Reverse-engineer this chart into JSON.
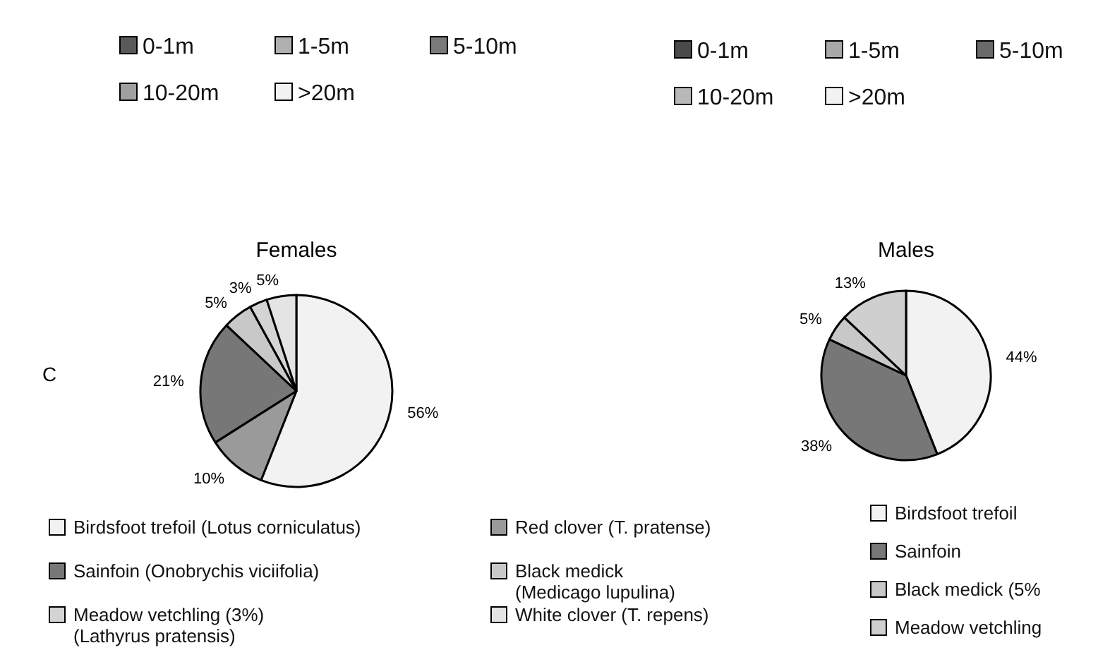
{
  "chart_data": [
    {
      "type": "other",
      "categories": [
        "0-1m",
        "1-5m",
        "5-10m",
        "10-20m",
        ">20m"
      ],
      "colors": [
        "#5a5a5a",
        "#b0b0b0",
        "#7a7a7a",
        "#a0a0a0",
        "#f2f2f2"
      ]
    },
    {
      "type": "other",
      "categories": [
        "0-1m",
        "1-5m",
        "5-10m",
        "10-20m",
        ">20m"
      ],
      "colors": [
        "#4a4a4a",
        "#a8a8a8",
        "#6a6a6a",
        "#b8b8b8",
        "#f2f2f2"
      ]
    },
    {
      "type": "pie",
      "title": "Females",
      "annotations": [
        "C"
      ],
      "categories": [
        "Birdsfoot trefoil (Lotus corniculatus)",
        "Red clover (T. pratense)",
        "Sainfoin (Onobrychis viciifolia)",
        "Black medick\n(Medicago lupulina)",
        "Meadow vetchling (3%)\n(Lathyrus pratensis)",
        "White clover (T. repens)"
      ],
      "values": [
        56,
        10,
        21,
        5,
        3,
        5
      ],
      "colors": [
        "#f2f2f2",
        "#9a9a9a",
        "#777777",
        "#c8c8c8",
        "#d4d4d4",
        "#e4e4e4"
      ],
      "value_labels": [
        "56%",
        "10%",
        "21%",
        "5%",
        "3%",
        "5%"
      ],
      "legend": "bottom"
    },
    {
      "type": "pie",
      "title": "Males",
      "categories": [
        "Birdsfoot trefoil",
        "Sainfoin",
        "Black medick (5%",
        "Meadow vetchling"
      ],
      "values": [
        44,
        38,
        5,
        13
      ],
      "colors": [
        "#f2f2f2",
        "#777777",
        "#c8c8c8",
        "#cfcfcf"
      ],
      "value_labels": [
        "44%",
        "38%",
        "5%",
        "13%"
      ],
      "legend": "bottom right"
    }
  ]
}
